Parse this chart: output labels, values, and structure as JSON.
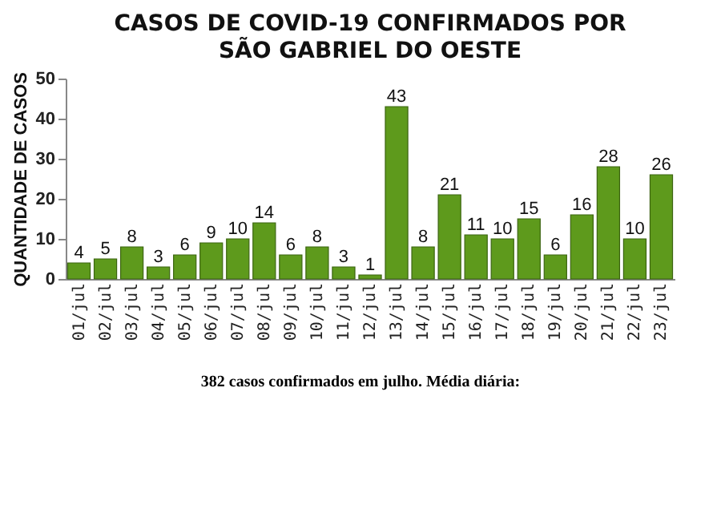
{
  "chart_data": {
    "type": "bar",
    "title": "CASOS DE COVID-19 CONFIRMADOS POR",
    "subtitle": "SÃO GABRIEL DO OESTE",
    "ylabel": "QUANTIDADE DE CASOS",
    "annotations": [
      "382 casos confirmados em julho. Média diária:"
    ],
    "categories": [
      "01/jul",
      "02/jul",
      "03/jul",
      "04/jul",
      "05/jul",
      "06/jul",
      "07/jul",
      "08/jul",
      "09/jul",
      "10/jul",
      "11/jul",
      "12/jul",
      "13/jul",
      "14/jul",
      "15/jul",
      "16/jul",
      "17/jul",
      "18/jul",
      "19/jul",
      "20/jul",
      "21/jul",
      "22/jul",
      "23/jul"
    ],
    "values": [
      4,
      5,
      8,
      3,
      6,
      9,
      10,
      14,
      6,
      8,
      3,
      1,
      43,
      8,
      21,
      11,
      10,
      15,
      6,
      16,
      28,
      10,
      26
    ],
    "color": "#5e9a1c",
    "ylim": [
      0,
      50
    ],
    "yticks": [
      0,
      10,
      20,
      30,
      40,
      50
    ],
    "data_labels": true
  }
}
